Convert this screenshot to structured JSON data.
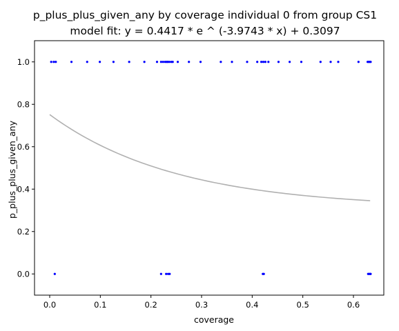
{
  "chart_data": {
    "type": "scatter",
    "title": "p_plus_plus_given_any by coverage individual 0 from group CS1",
    "subtitle": "model fit: y = 0.4417 * e ^ (-3.9743 * x) + 0.3097",
    "xlabel": "coverage",
    "ylabel": "p_plus_plus_given_any",
    "xlim": [
      -0.03,
      0.66
    ],
    "ylim": [
      -0.1,
      1.1
    ],
    "xticks": [
      "0.0",
      "0.1",
      "0.2",
      "0.3",
      "0.4",
      "0.5",
      "0.6"
    ],
    "yticks": [
      "0.0",
      "0.2",
      "0.4",
      "0.6",
      "0.8",
      "1.0"
    ],
    "grid": false,
    "colors": {
      "points": "#0000ff",
      "fit": "#b0b0b0",
      "axes": "#000000"
    },
    "series": [
      {
        "kind": "points",
        "x": [
          0.003,
          0.008,
          0.012,
          0.043,
          0.074,
          0.099,
          0.126,
          0.157,
          0.187,
          0.212,
          0.22,
          0.224,
          0.228,
          0.231,
          0.233,
          0.236,
          0.24,
          0.243,
          0.253,
          0.275,
          0.298,
          0.338,
          0.36,
          0.39,
          0.41,
          0.418,
          0.422,
          0.426,
          0.432,
          0.452,
          0.474,
          0.497,
          0.535,
          0.555,
          0.57,
          0.61,
          0.628,
          0.63,
          0.632,
          0.634,
          0.01,
          0.22,
          0.23,
          0.234,
          0.237,
          0.421,
          0.423,
          0.629,
          0.631,
          0.633,
          0.634
        ],
        "y": [
          1,
          1,
          1,
          1,
          1,
          1,
          1,
          1,
          1,
          1,
          1,
          1,
          1,
          1,
          1,
          1,
          1,
          1,
          1,
          1,
          1,
          1,
          1,
          1,
          1,
          1,
          1,
          1,
          1,
          1,
          1,
          1,
          1,
          1,
          1,
          1,
          1,
          1,
          1,
          1,
          0,
          0,
          0,
          0,
          0,
          0,
          0,
          0,
          0,
          0,
          0
        ]
      },
      {
        "kind": "fit-line",
        "model": {
          "a": 0.4417,
          "b": -3.9743,
          "c": 0.3097
        },
        "x_range": [
          0.0,
          0.633
        ]
      }
    ]
  }
}
